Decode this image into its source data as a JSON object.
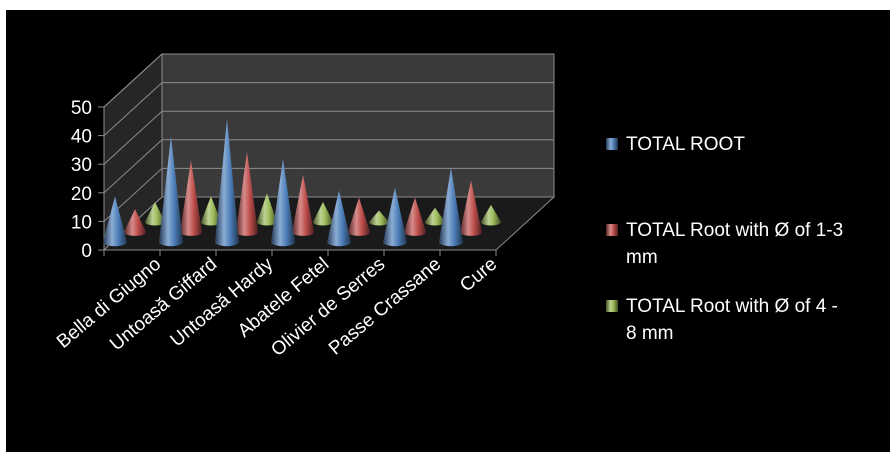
{
  "chart_data": {
    "type": "bar",
    "style": "3d-cone",
    "title": "",
    "xlabel": "",
    "ylabel": "",
    "ylim": [
      0,
      50
    ],
    "yticks": [
      0,
      10,
      20,
      30,
      40,
      50
    ],
    "grid": true,
    "legend_position": "right",
    "categories": [
      "Bella di Giugno",
      "Untoasă Giffard",
      "Untoasă Hardy",
      "Abatele Fetel",
      "Olivier de Serres",
      "Passe Crassane",
      "Cure"
    ],
    "series": [
      {
        "name": "TOTAL ROOT",
        "values": [
          16,
          37,
          43,
          29,
          18,
          19,
          26
        ],
        "color": "#4f81bd"
      },
      {
        "name": "TOTAL Root with Ø of 1-3 mm",
        "values": [
          8,
          25,
          28,
          20,
          12,
          12,
          18
        ],
        "color": "#c0504d"
      },
      {
        "name": "TOTAL Root with Ø of 4 - 8 mm",
        "values": [
          7,
          9,
          10,
          7,
          4,
          5,
          6
        ],
        "color": "#9bbb59"
      }
    ],
    "legend_lines": [
      [
        "TOTAL ROOT"
      ],
      [
        "TOTAL Root with Ø of 1-3",
        "mm"
      ],
      [
        "TOTAL Root with Ø of 4 -",
        "8 mm"
      ]
    ]
  }
}
